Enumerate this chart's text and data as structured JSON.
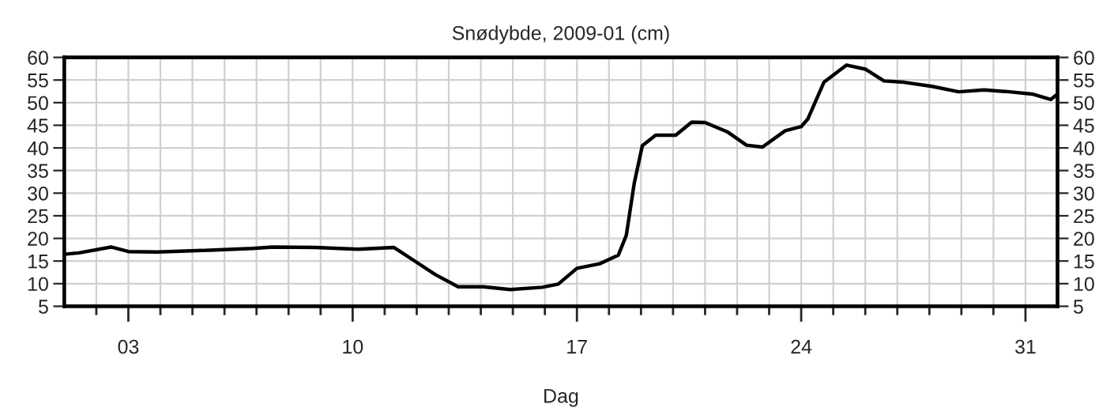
{
  "chart_data": {
    "type": "line",
    "title": "Snødybde, 2009-01 (cm)",
    "xlabel": "Dag",
    "x": [
      "2009-01-01T00:00",
      "2009-01-01T11:00",
      "2009-01-02T11:00",
      "2009-01-03T00:00",
      "2009-01-03T22:00",
      "2009-01-05T13:00",
      "2009-01-06T21:00",
      "2009-01-07T12:00",
      "2009-01-08T20:00",
      "2009-01-10T04:00",
      "2009-01-11T07:00",
      "2009-01-11T23:00",
      "2009-01-12T14:00",
      "2009-01-13T07:00",
      "2009-01-14T02:00",
      "2009-01-14T22:00",
      "2009-01-15T22:00",
      "2009-01-16T10:00",
      "2009-01-17T00:00",
      "2009-01-17T17:00",
      "2009-01-18T07:00",
      "2009-01-18T13:00",
      "2009-01-18T19:00",
      "2009-01-19T01:00",
      "2009-01-19T11:00",
      "2009-01-20T02:00",
      "2009-01-20T14:00",
      "2009-01-21T00:00",
      "2009-01-21T17:00",
      "2009-01-22T07:00",
      "2009-01-22T19:00",
      "2009-01-23T12:00",
      "2009-01-24T00:00",
      "2009-01-24T05:00",
      "2009-01-24T17:00",
      "2009-01-25T10:00",
      "2009-01-26T00:00",
      "2009-01-26T14:00",
      "2009-01-27T05:00",
      "2009-01-28T02:00",
      "2009-01-28T22:00",
      "2009-01-29T17:00",
      "2009-01-30T12:00",
      "2009-01-31T05:00",
      "2009-01-31T19:00",
      "2009-02-01T00:00"
    ],
    "series": [
      {
        "color": "#000000",
        "values": [
          16.5,
          16.8,
          18.1,
          17.1,
          17.0,
          17.4,
          17.8,
          18.1,
          18.0,
          17.6,
          18.0,
          14.9,
          12.0,
          9.3,
          9.3,
          8.7,
          9.2,
          9.9,
          13.4,
          14.4,
          16.3,
          20.7,
          32.3,
          40.5,
          42.8,
          42.8,
          45.7,
          45.6,
          43.5,
          40.6,
          40.2,
          43.8,
          44.7,
          46.4,
          54.5,
          58.3,
          57.4,
          54.8,
          54.5,
          53.6,
          52.4,
          52.8,
          52.4,
          51.9,
          50.7,
          51.9
        ]
      }
    ],
    "xlim": [
      "2009-01-01",
      "2009-02-01"
    ],
    "xticks": [
      {
        "value": "2009-01-02",
        "label": null
      },
      {
        "value": "2009-01-03",
        "label": "03"
      },
      {
        "value": "2009-01-04",
        "label": null
      },
      {
        "value": "2009-01-05",
        "label": null
      },
      {
        "value": "2009-01-06",
        "label": null
      },
      {
        "value": "2009-01-07",
        "label": null
      },
      {
        "value": "2009-01-08",
        "label": null
      },
      {
        "value": "2009-01-09",
        "label": null
      },
      {
        "value": "2009-01-10",
        "label": "10"
      },
      {
        "value": "2009-01-11",
        "label": null
      },
      {
        "value": "2009-01-12",
        "label": null
      },
      {
        "value": "2009-01-13",
        "label": null
      },
      {
        "value": "2009-01-14",
        "label": null
      },
      {
        "value": "2009-01-15",
        "label": null
      },
      {
        "value": "2009-01-16",
        "label": null
      },
      {
        "value": "2009-01-17",
        "label": "17"
      },
      {
        "value": "2009-01-18",
        "label": null
      },
      {
        "value": "2009-01-19",
        "label": null
      },
      {
        "value": "2009-01-20",
        "label": null
      },
      {
        "value": "2009-01-21",
        "label": null
      },
      {
        "value": "2009-01-22",
        "label": null
      },
      {
        "value": "2009-01-23",
        "label": null
      },
      {
        "value": "2009-01-24",
        "label": "24"
      },
      {
        "value": "2009-01-25",
        "label": null
      },
      {
        "value": "2009-01-26",
        "label": null
      },
      {
        "value": "2009-01-27",
        "label": null
      },
      {
        "value": "2009-01-28",
        "label": null
      },
      {
        "value": "2009-01-29",
        "label": null
      },
      {
        "value": "2009-01-30",
        "label": null
      },
      {
        "value": "2009-01-31",
        "label": "31"
      }
    ],
    "ylim": [
      5,
      60
    ],
    "yticks": [
      5,
      10,
      15,
      20,
      25,
      30,
      35,
      40,
      45,
      50,
      55,
      60
    ],
    "y2lim": [
      5,
      60
    ],
    "y2ticks": [
      5,
      10,
      15,
      20,
      25,
      30,
      35,
      40,
      45,
      50,
      55,
      60
    ],
    "grid": true,
    "line_style": "solid"
  }
}
